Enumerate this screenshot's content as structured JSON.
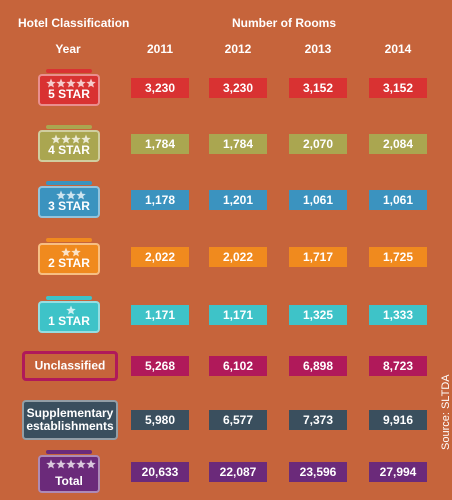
{
  "header": {
    "title": "Hotel Classification",
    "subtitle": "Number of Rooms"
  },
  "table": {
    "columns": [
      "Year",
      "2011",
      "2012",
      "2013",
      "2014"
    ],
    "rows": [
      [
        "5 STAR",
        "3,230",
        "3,230",
        "3,152",
        "3,152"
      ],
      [
        "4 STAR",
        "1,784",
        "1,784",
        "2,070",
        "2,084"
      ],
      [
        "3 STAR",
        "1,178",
        "1,201",
        "1,061",
        "1,061"
      ],
      [
        "2 STAR",
        "2,022",
        "2,022",
        "1,717",
        "1,725"
      ],
      [
        "1 STAR",
        "1,171",
        "1,171",
        "1,325",
        "1,333"
      ],
      [
        "Unclassified",
        "5,268",
        "6,102",
        "6,898",
        "8,723"
      ],
      [
        "Supplementary establishments",
        "5,980",
        "6,577",
        "7,373",
        "9,916"
      ],
      [
        "Total",
        "20,633",
        "22,087",
        "23,596",
        "27,994"
      ]
    ]
  },
  "source": "Source: SLTDA"
}
